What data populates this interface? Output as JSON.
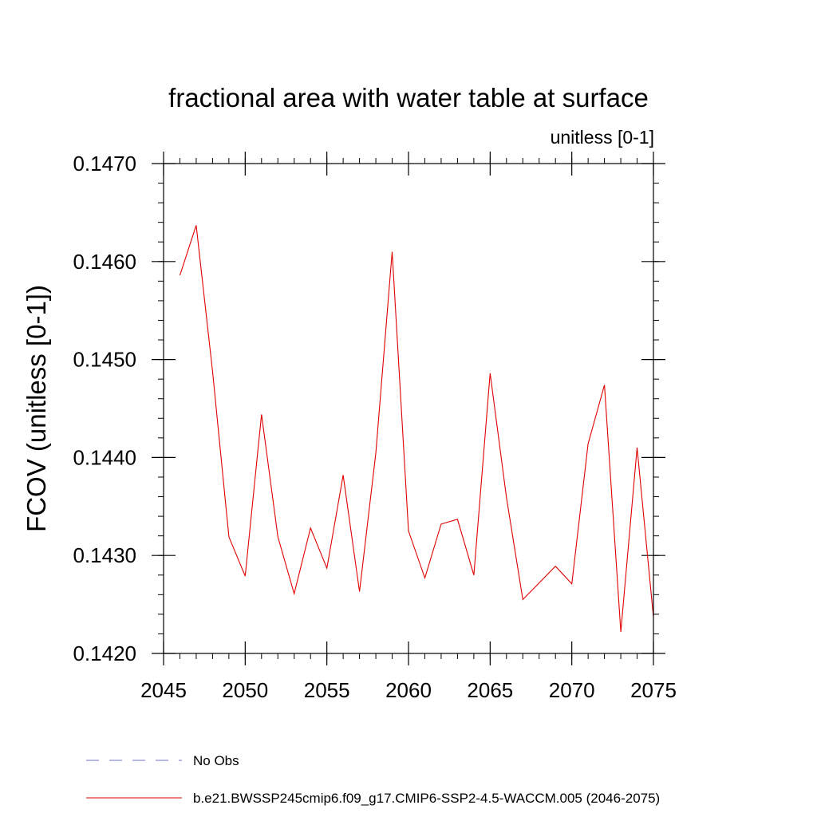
{
  "chart_data": {
    "type": "line",
    "title": "fractional area with water table at surface",
    "units_label": "unitless [0-1]",
    "ylabel": "FCOV  (unitless [0-1])",
    "xlabel": "",
    "xlim": [
      2045,
      2075
    ],
    "ylim": [
      0.142,
      0.147
    ],
    "x_ticks": [
      2045,
      2050,
      2055,
      2060,
      2065,
      2070,
      2075
    ],
    "y_ticks": [
      0.142,
      0.143,
      0.144,
      0.145,
      0.146,
      0.147
    ],
    "y_tick_labels": [
      "0.1420",
      "0.1430",
      "0.1440",
      "0.1450",
      "0.1460",
      "0.1470"
    ],
    "x_minor_step": 1,
    "y_minor_step": 0.0002,
    "series": [
      {
        "name": "b.e21.BWSSP245cmip6.f09_g17.CMIP6-SSP2-4.5-WACCM.005 (2046-2075)",
        "color": "#e00000",
        "style": "solid",
        "x": [
          2046,
          2047,
          2048,
          2049,
          2050,
          2051,
          2052,
          2053,
          2054,
          2055,
          2056,
          2057,
          2058,
          2059,
          2060,
          2061,
          2062,
          2063,
          2064,
          2065,
          2066,
          2067,
          2068,
          2069,
          2070,
          2071,
          2072,
          2073,
          2074,
          2075
        ],
        "values": [
          0.14586,
          0.14637,
          0.14488,
          0.14319,
          0.14279,
          0.14444,
          0.14319,
          0.14261,
          0.14328,
          0.14287,
          0.14382,
          0.14263,
          0.14405,
          0.1461,
          0.14325,
          0.14277,
          0.14332,
          0.14337,
          0.1428,
          0.14486,
          0.14359,
          0.14255,
          0.14272,
          0.14289,
          0.14271,
          0.14414,
          0.14474,
          0.14222,
          0.1441,
          0.14237
        ]
      }
    ],
    "legend": [
      {
        "label": "No Obs",
        "color": "#7070c0",
        "style": "dashed"
      },
      {
        "label": "b.e21.BWSSP245cmip6.f09_g17.CMIP6-SSP2-4.5-WACCM.005 (2046-2075)",
        "color": "#e00000",
        "style": "solid"
      }
    ],
    "legend_placement": "bottom",
    "grid": false
  }
}
